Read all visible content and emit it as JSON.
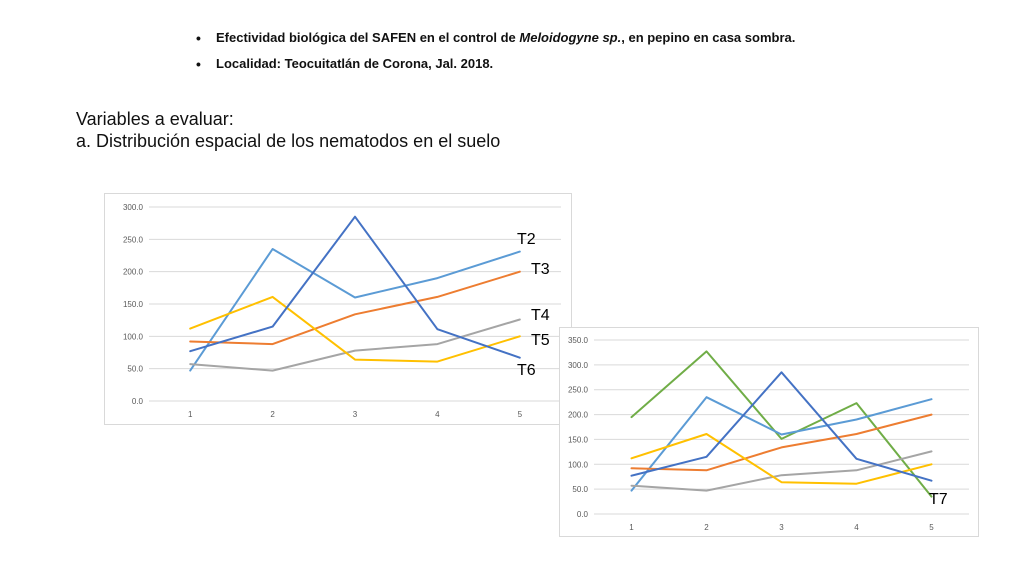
{
  "bullets": [
    {
      "before": "Efectividad biológica del SAFEN en el control de ",
      "italic": "Meloidogyne sp.",
      "after": ", en pepino en casa sombra."
    },
    {
      "before": "Localidad: Teocuitatlán de Corona, Jal. 2018.",
      "italic": "",
      "after": ""
    }
  ],
  "heading": {
    "line1": "Variables a evaluar:",
    "line2": "a. Distribución espacial de los nematodos en el suelo"
  },
  "treatment_labels": {
    "t2": "T2",
    "t3": "T3",
    "t4": "T4",
    "t5": "T5",
    "t6": "T6",
    "t7": "T7"
  },
  "chart_data": [
    {
      "type": "line",
      "x": [
        1,
        2,
        3,
        4,
        5
      ],
      "ylim": [
        0,
        300
      ],
      "yticks": [
        "0.0",
        "50.0",
        "100.0",
        "150.0",
        "200.0",
        "250.0",
        "300.0"
      ],
      "grid": true,
      "series": [
        {
          "name": "T2",
          "color": "#5B9BD5",
          "values": [
            47,
            235,
            160,
            190,
            231
          ]
        },
        {
          "name": "T3",
          "color": "#ED7D31",
          "values": [
            92,
            88,
            134,
            161,
            200
          ]
        },
        {
          "name": "T4",
          "color": "#A5A5A5",
          "values": [
            57,
            47,
            78,
            88,
            126
          ]
        },
        {
          "name": "T5",
          "color": "#FFC000",
          "values": [
            112,
            161,
            64,
            61,
            100
          ]
        },
        {
          "name": "T6",
          "color": "#4472C4",
          "values": [
            77,
            115,
            285,
            111,
            67
          ]
        }
      ]
    },
    {
      "type": "line",
      "x": [
        1,
        2,
        3,
        4,
        5
      ],
      "ylim": [
        0,
        350
      ],
      "yticks": [
        "0.0",
        "50.0",
        "100.0",
        "150.0",
        "200.0",
        "250.0",
        "300.0",
        "350.0"
      ],
      "grid": true,
      "series": [
        {
          "name": "T7",
          "color": "#70AD47",
          "values": [
            195,
            327,
            151,
            223,
            35
          ]
        },
        {
          "name": "T2",
          "color": "#5B9BD5",
          "values": [
            47,
            235,
            160,
            190,
            231
          ]
        },
        {
          "name": "T3",
          "color": "#ED7D31",
          "values": [
            92,
            88,
            134,
            161,
            200
          ]
        },
        {
          "name": "T4",
          "color": "#A5A5A5",
          "values": [
            57,
            47,
            78,
            88,
            126
          ]
        },
        {
          "name": "T5",
          "color": "#FFC000",
          "values": [
            112,
            161,
            64,
            61,
            100
          ]
        },
        {
          "name": "T6",
          "color": "#4472C4",
          "values": [
            77,
            115,
            285,
            111,
            67
          ]
        }
      ]
    }
  ]
}
